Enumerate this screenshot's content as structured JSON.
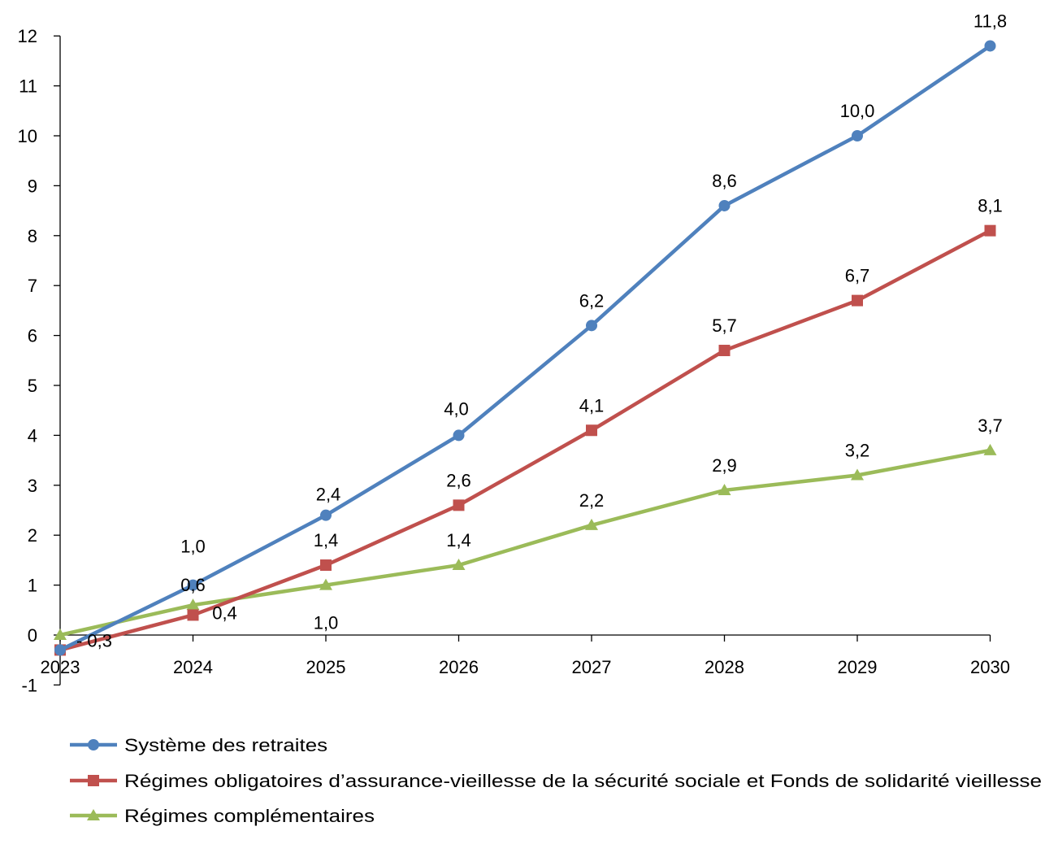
{
  "chart_data": {
    "type": "line",
    "title": "",
    "xlabel": "",
    "ylabel": "",
    "x": [
      "2023",
      "2024",
      "2025",
      "2026",
      "2027",
      "2028",
      "2029",
      "2030"
    ],
    "ylim": [
      -1,
      12
    ],
    "yticks": [
      "-1",
      "0",
      "1",
      "2",
      "3",
      "4",
      "5",
      "6",
      "7",
      "8",
      "9",
      "10",
      "11",
      "12"
    ],
    "grid": false,
    "legend_position": "bottom",
    "series": [
      {
        "name": "Système des retraites",
        "color": "#4F81BD",
        "marker": "circle",
        "values": [
          -0.3,
          1.0,
          2.4,
          4.0,
          6.2,
          8.6,
          10.0,
          11.8
        ],
        "labels": [
          "- 0,3",
          "1,0",
          "2,4",
          "4,0",
          "6,2",
          "8,6",
          "10,0",
          "11,8"
        ]
      },
      {
        "name": "Régimes obligatoires d’assurance-vieillesse  de la sécurité sociale et Fonds de solidarité vieillesse",
        "color": "#C0504D",
        "marker": "square",
        "values": [
          -0.3,
          0.4,
          1.4,
          2.6,
          4.1,
          5.7,
          6.7,
          8.1
        ],
        "labels": [
          "",
          "0,4",
          "1,4",
          "2,6",
          "4,1",
          "5,7",
          "6,7",
          "8,1"
        ]
      },
      {
        "name": "Régimes complémentaires",
        "color": "#9BBB59",
        "marker": "triangle",
        "values": [
          0.0,
          0.6,
          1.0,
          1.4,
          2.2,
          2.9,
          3.2,
          3.7
        ],
        "labels": [
          "",
          "0,6",
          "1,0",
          "1,4",
          "2,2",
          "2,9",
          "3,2",
          "3,7"
        ]
      }
    ]
  }
}
